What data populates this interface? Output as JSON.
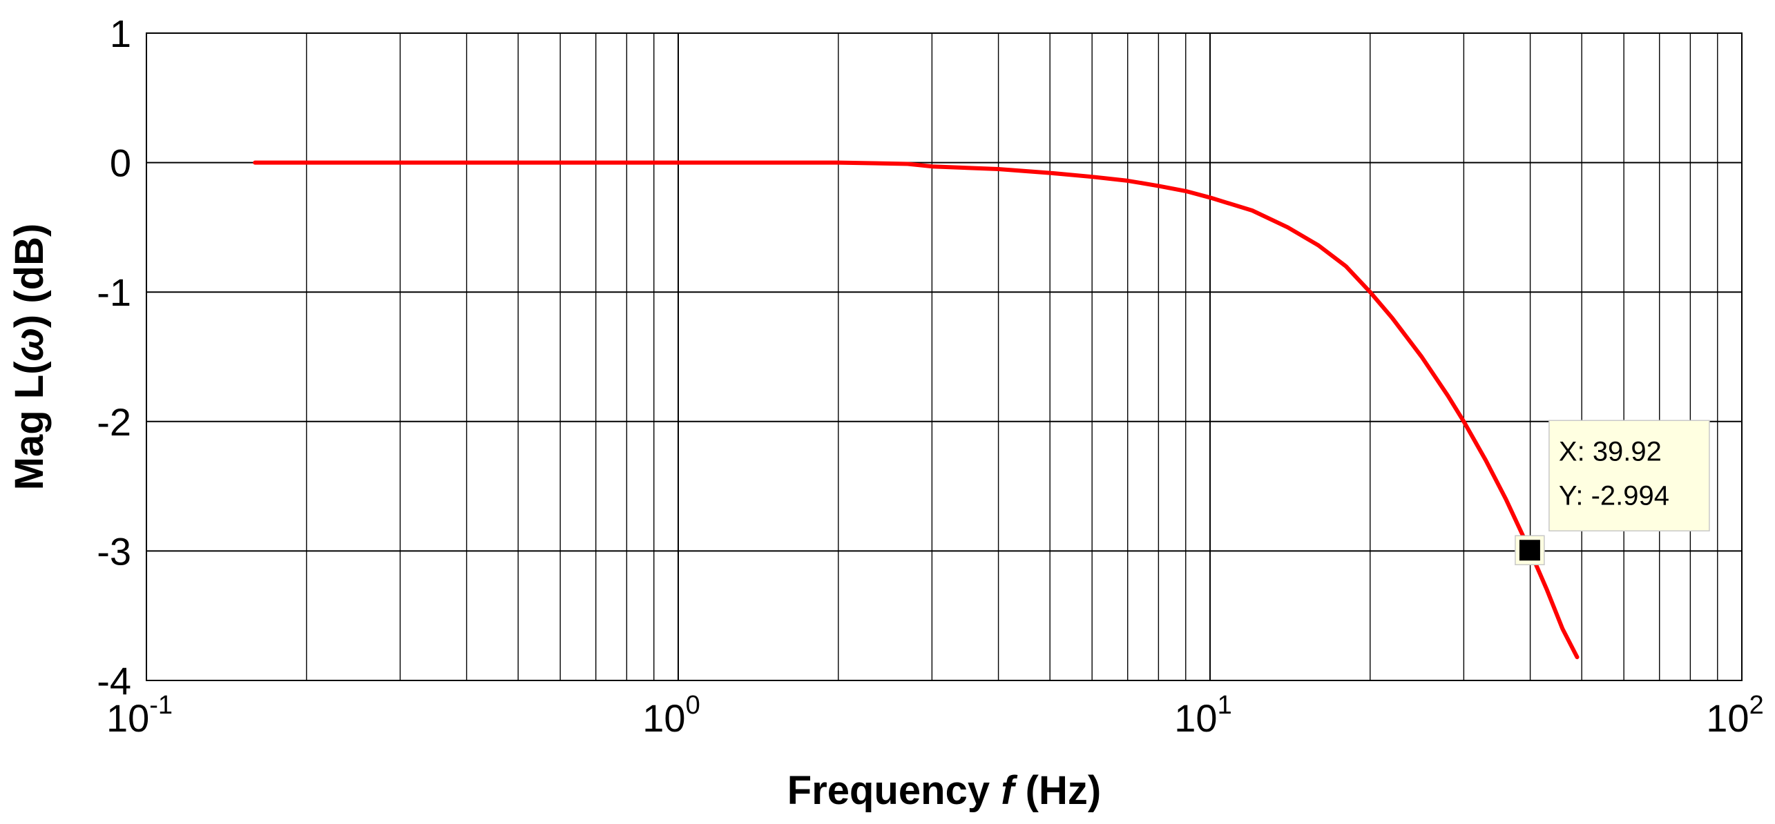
{
  "chart_data": {
    "type": "line",
    "x_scale": "log",
    "xlim": [
      0.1,
      100
    ],
    "ylim": [
      -4,
      1
    ],
    "grid": true,
    "xlabel_prefix": "Frequency ",
    "xlabel_var": "f",
    "xlabel_suffix": " (Hz)",
    "ylabel_prefix": "Mag L(",
    "ylabel_var": "ω",
    "ylabel_suffix": ") (dB)",
    "x_tick_labels": [
      {
        "value": 0.1,
        "base": "10",
        "exp": "-1"
      },
      {
        "value": 1,
        "base": "10",
        "exp": "0"
      },
      {
        "value": 10,
        "base": "10",
        "exp": "1"
      },
      {
        "value": 100,
        "base": "10",
        "exp": "2"
      }
    ],
    "y_ticks": [
      1,
      0,
      -1,
      -2,
      -3,
      -4
    ],
    "y_tick_labels": [
      "1",
      "0",
      "-1",
      "-2",
      "-3",
      "-4"
    ],
    "series": [
      {
        "color": "#ff0000",
        "x": [
          0.16,
          0.5,
          1,
          2,
          2.7,
          3,
          4,
          5,
          6,
          7,
          8,
          9,
          10,
          12,
          14,
          16,
          18,
          20,
          22,
          25,
          28,
          30,
          33,
          36,
          39.92,
          43,
          46,
          49
        ],
        "y": [
          0,
          0,
          0,
          0,
          -0.01,
          -0.03,
          -0.05,
          -0.08,
          -0.11,
          -0.14,
          -0.18,
          -0.22,
          -0.27,
          -0.37,
          -0.5,
          -0.64,
          -0.8,
          -1.0,
          -1.2,
          -1.5,
          -1.8,
          -2.0,
          -2.3,
          -2.6,
          -2.994,
          -3.3,
          -3.6,
          -3.82
        ]
      }
    ],
    "data_tip": {
      "x": 39.92,
      "y": -2.994,
      "x_text": "X: 39.92",
      "y_text": "Y: -2.994"
    }
  }
}
